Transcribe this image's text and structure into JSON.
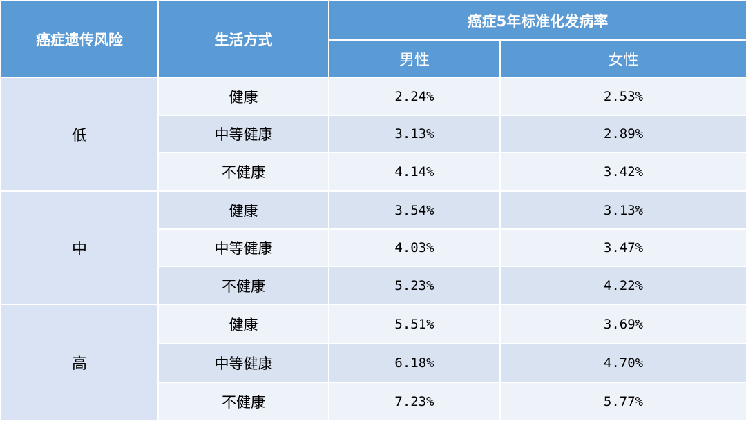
{
  "header": {
    "risk": "癌症遗传风险",
    "lifestyle": "生活方式",
    "incidence": "癌症5年标准化发病率",
    "male": "男性",
    "female": "女性"
  },
  "groups": [
    {
      "risk": "低",
      "rows": [
        {
          "lifestyle": "健康",
          "male": "2.24%",
          "female": "2.53%"
        },
        {
          "lifestyle": "中等健康",
          "male": "3.13%",
          "female": "2.89%"
        },
        {
          "lifestyle": "不健康",
          "male": "4.14%",
          "female": "3.42%"
        }
      ]
    },
    {
      "risk": "中",
      "rows": [
        {
          "lifestyle": "健康",
          "male": "3.54%",
          "female": "3.13%"
        },
        {
          "lifestyle": "中等健康",
          "male": "4.03%",
          "female": "3.47%"
        },
        {
          "lifestyle": "不健康",
          "male": "5.23%",
          "female": "4.22%"
        }
      ]
    },
    {
      "risk": "高",
      "rows": [
        {
          "lifestyle": "健康",
          "male": "5.51%",
          "female": "3.69%"
        },
        {
          "lifestyle": "中等健康",
          "male": "6.18%",
          "female": "4.70%"
        },
        {
          "lifestyle": "不健康",
          "male": "7.23%",
          "female": "5.77%"
        }
      ]
    }
  ],
  "colors": {
    "header_bg": "#5b9bd5",
    "group_bg": "#dae3f3",
    "row_light": "#eef2f9",
    "row_dark": "#d9e2f1"
  }
}
